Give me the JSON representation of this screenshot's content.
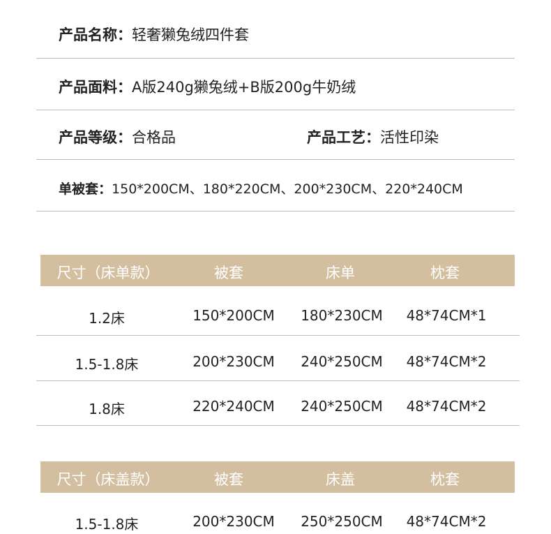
{
  "info": {
    "name": {
      "label": "产品名称：",
      "value": "轻奢獭兔绒四件套"
    },
    "fabric": {
      "label": "产品面料：",
      "value": "A版240g獭兔绒+B版200g牛奶绒"
    },
    "grade": {
      "label": "产品等级：",
      "value": "合格品"
    },
    "craft": {
      "label": "产品工艺：",
      "value": "活性印染"
    },
    "duvet": {
      "label": "单被套：",
      "value": "150*200CM、180*220CM、200*230CM、220*240CM"
    }
  },
  "colors": {
    "header_bg": "#d3bf9f"
  },
  "table1": {
    "headers": [
      "尺寸（床单款）",
      "被套",
      "床单",
      "枕套"
    ],
    "rows": [
      [
        "1.2床",
        "150*200CM",
        "180*230CM",
        "48*74CM*1"
      ],
      [
        "1.5-1.8床",
        "200*230CM",
        "240*250CM",
        "48*74CM*2"
      ],
      [
        "1.8床",
        "220*240CM",
        "240*250CM",
        "48*74CM*2"
      ]
    ]
  },
  "table2": {
    "headers": [
      "尺寸（床盖款）",
      "被套",
      "床盖",
      "枕套"
    ],
    "rows": [
      [
        "1.5-1.8床",
        "200*230CM",
        "250*250CM",
        "48*74CM*2"
      ]
    ]
  }
}
